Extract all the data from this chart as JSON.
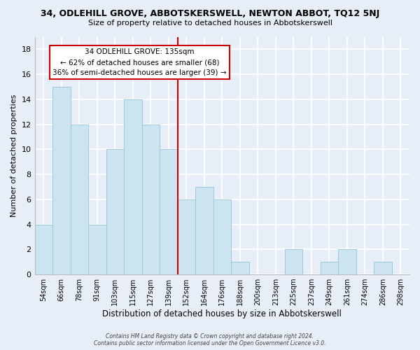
{
  "title": "34, ODLEHILL GROVE, ABBOTSKERSWELL, NEWTON ABBOT, TQ12 5NJ",
  "subtitle": "Size of property relative to detached houses in Abbotskerswell",
  "xlabel": "Distribution of detached houses by size in Abbotskerswell",
  "ylabel": "Number of detached properties",
  "bin_labels": [
    "54sqm",
    "66sqm",
    "78sqm",
    "91sqm",
    "103sqm",
    "115sqm",
    "127sqm",
    "139sqm",
    "152sqm",
    "164sqm",
    "176sqm",
    "188sqm",
    "200sqm",
    "213sqm",
    "225sqm",
    "237sqm",
    "249sqm",
    "261sqm",
    "274sqm",
    "286sqm",
    "298sqm"
  ],
  "bar_heights": [
    4,
    15,
    12,
    4,
    10,
    14,
    12,
    10,
    6,
    7,
    6,
    1,
    0,
    0,
    2,
    0,
    1,
    2,
    0,
    1,
    0
  ],
  "bar_color": "#cce4f0",
  "bar_edge_color": "#9dc8e0",
  "vline_x": 7.5,
  "vline_color": "#cc0000",
  "annotation_line1": "34 ODLEHILL GROVE: 135sqm",
  "annotation_line2": "← 62% of detached houses are smaller (68)",
  "annotation_line3": "36% of semi-detached houses are larger (39) →",
  "ylim": [
    0,
    19
  ],
  "yticks": [
    0,
    2,
    4,
    6,
    8,
    10,
    12,
    14,
    16,
    18
  ],
  "footer1": "Contains HM Land Registry data © Crown copyright and database right 2024.",
  "footer2": "Contains public sector information licensed under the Open Government Licence v3.0.",
  "background_color": "#e8eef8",
  "grid_color": "#ffffff",
  "annotation_box_color": "#ffffff",
  "annotation_box_edge_color": "#cc0000"
}
